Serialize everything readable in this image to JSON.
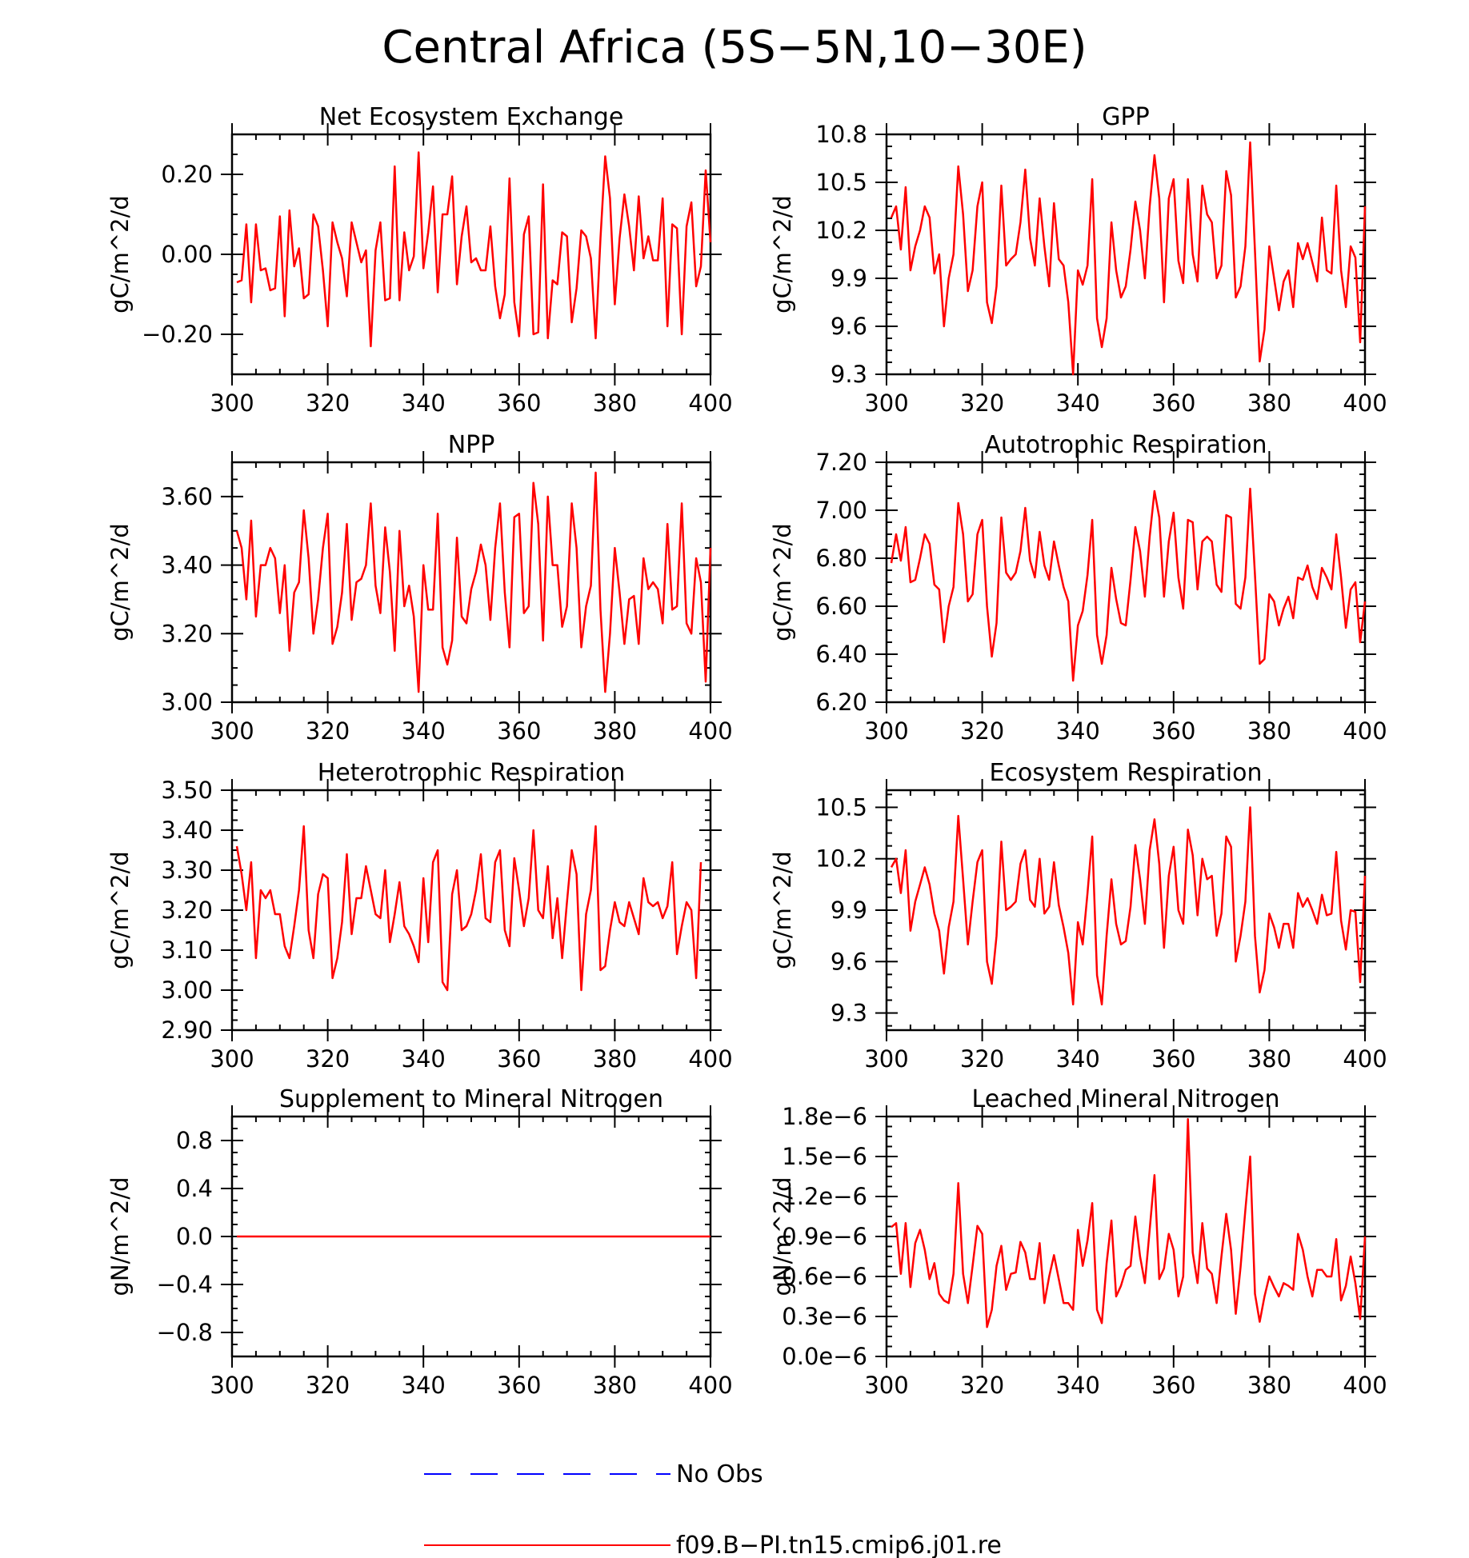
{
  "title": "Central Africa (5S−5N,10−30E)",
  "legend": {
    "entries": [
      {
        "label": "No Obs",
        "color": "#0000ff",
        "dash": true
      },
      {
        "label": "f09.B−PI.tn15.cmip6.j01.re",
        "color": "#ff0000",
        "dash": false
      }
    ]
  },
  "chart_data": [
    {
      "type": "line",
      "title": "Net Ecosystem Exchange",
      "ylabel": "gC/m^2/d",
      "xlim": [
        300,
        400
      ],
      "ylim": [
        -0.3,
        0.3
      ],
      "xticks": [
        300,
        320,
        340,
        360,
        380,
        400
      ],
      "xtick_labels": [
        "300",
        "320",
        "340",
        "360",
        "380",
        "400"
      ],
      "yticks": [
        -0.2,
        0.0,
        0.2
      ],
      "ytick_labels": [
        "−0.20",
        "0.00",
        "0.20"
      ],
      "series": [
        {
          "color": "#ff0000",
          "x_start": 301,
          "x_step": 1,
          "values": [
            -0.07,
            -0.065,
            0.075,
            -0.12,
            0.075,
            -0.04,
            -0.035,
            -0.09,
            -0.085,
            0.095,
            -0.155,
            0.11,
            -0.03,
            0.015,
            -0.11,
            -0.1,
            0.1,
            0.07,
            -0.04,
            -0.18,
            0.08,
            0.03,
            -0.01,
            -0.105,
            0.08,
            0.03,
            -0.02,
            0.01,
            -0.23,
            0.01,
            0.08,
            -0.115,
            -0.11,
            0.22,
            -0.115,
            0.055,
            -0.04,
            -0.005,
            0.255,
            -0.035,
            0.055,
            0.17,
            -0.095,
            0.1,
            0.1,
            0.195,
            -0.075,
            0.045,
            0.12,
            -0.02,
            -0.01,
            -0.04,
            -0.04,
            0.07,
            -0.08,
            -0.16,
            -0.1,
            0.19,
            -0.12,
            -0.205,
            0.05,
            0.095,
            -0.2,
            -0.195,
            0.175,
            -0.21,
            -0.065,
            -0.075,
            0.055,
            0.045,
            -0.17,
            -0.085,
            0.06,
            0.045,
            -0.01,
            -0.21,
            0.04,
            0.245,
            0.14,
            -0.125,
            0.04,
            0.15,
            0.07,
            -0.04,
            0.145,
            -0.01,
            0.045,
            -0.015,
            -0.015,
            0.14,
            -0.18,
            0.075,
            0.065,
            -0.2,
            0.07,
            0.13,
            -0.08,
            -0.03,
            0.21,
            0.03
          ]
        }
      ]
    },
    {
      "type": "line",
      "title": "GPP",
      "ylabel": "gC/m^2/d",
      "xlim": [
        300,
        400
      ],
      "ylim": [
        9.3,
        10.8
      ],
      "xticks": [
        300,
        320,
        340,
        360,
        380,
        400
      ],
      "xtick_labels": [
        "300",
        "320",
        "340",
        "360",
        "380",
        "400"
      ],
      "yticks": [
        9.3,
        9.6,
        9.9,
        10.2,
        10.5,
        10.8
      ],
      "ytick_labels": [
        "9.3",
        "9.6",
        "9.9",
        "10.2",
        "10.5",
        "10.8"
      ],
      "series": [
        {
          "color": "#ff0000",
          "x_start": 301,
          "x_step": 1,
          "values": [
            10.28,
            10.35,
            10.08,
            10.47,
            9.95,
            10.1,
            10.2,
            10.35,
            10.28,
            9.93,
            10.05,
            9.6,
            9.9,
            10.05,
            10.6,
            10.3,
            9.82,
            9.95,
            10.35,
            10.5,
            9.75,
            9.62,
            9.85,
            10.48,
            9.98,
            10.02,
            10.05,
            10.25,
            10.58,
            10.15,
            9.98,
            10.4,
            10.1,
            9.85,
            10.37,
            10.02,
            9.98,
            9.75,
            9.3,
            9.95,
            9.86,
            9.98,
            10.52,
            9.65,
            9.47,
            9.65,
            10.25,
            9.95,
            9.78,
            9.85,
            10.08,
            10.38,
            10.2,
            9.9,
            10.35,
            10.67,
            10.4,
            9.75,
            10.4,
            10.52,
            10.01,
            9.87,
            10.52,
            10.05,
            9.88,
            10.48,
            10.3,
            10.25,
            9.9,
            9.98,
            10.57,
            10.42,
            9.78,
            9.85,
            10.1,
            10.75,
            10.07,
            9.38,
            9.58,
            10.1,
            9.9,
            9.7,
            9.88,
            9.95,
            9.72,
            10.12,
            10.02,
            10.12,
            10.0,
            9.88,
            10.28,
            9.95,
            9.93,
            10.48,
            9.95,
            9.72,
            10.1,
            10.03,
            9.5,
            10.35
          ]
        }
      ]
    },
    {
      "type": "line",
      "title": "NPP",
      "ylabel": "gC/m^2/d",
      "xlim": [
        300,
        400
      ],
      "ylim": [
        3.0,
        3.7
      ],
      "xticks": [
        300,
        320,
        340,
        360,
        380,
        400
      ],
      "xtick_labels": [
        "300",
        "320",
        "340",
        "360",
        "380",
        "400"
      ],
      "yticks": [
        3.0,
        3.2,
        3.4,
        3.6
      ],
      "ytick_labels": [
        "3.00",
        "3.20",
        "3.40",
        "3.60"
      ],
      "series": [
        {
          "color": "#ff0000",
          "x_start": 301,
          "x_step": 1,
          "values": [
            3.5,
            3.45,
            3.3,
            3.53,
            3.25,
            3.4,
            3.4,
            3.45,
            3.42,
            3.26,
            3.4,
            3.15,
            3.32,
            3.35,
            3.56,
            3.42,
            3.2,
            3.3,
            3.45,
            3.55,
            3.17,
            3.22,
            3.32,
            3.52,
            3.24,
            3.35,
            3.36,
            3.4,
            3.58,
            3.34,
            3.26,
            3.51,
            3.38,
            3.15,
            3.5,
            3.28,
            3.34,
            3.25,
            3.03,
            3.4,
            3.27,
            3.27,
            3.55,
            3.16,
            3.11,
            3.18,
            3.48,
            3.25,
            3.23,
            3.33,
            3.38,
            3.46,
            3.4,
            3.24,
            3.45,
            3.58,
            3.32,
            3.16,
            3.54,
            3.55,
            3.26,
            3.28,
            3.64,
            3.52,
            3.18,
            3.6,
            3.4,
            3.4,
            3.22,
            3.28,
            3.58,
            3.45,
            3.16,
            3.28,
            3.34,
            3.67,
            3.27,
            3.03,
            3.2,
            3.45,
            3.32,
            3.17,
            3.3,
            3.31,
            3.17,
            3.42,
            3.33,
            3.35,
            3.33,
            3.23,
            3.52,
            3.27,
            3.28,
            3.58,
            3.23,
            3.2,
            3.42,
            3.35,
            3.06,
            3.45
          ]
        }
      ]
    },
    {
      "type": "line",
      "title": "Autotrophic Respiration",
      "ylabel": "gC/m^2/d",
      "xlim": [
        300,
        400
      ],
      "ylim": [
        6.2,
        7.2
      ],
      "xticks": [
        300,
        320,
        340,
        360,
        380,
        400
      ],
      "xtick_labels": [
        "300",
        "320",
        "340",
        "360",
        "380",
        "400"
      ],
      "yticks": [
        6.2,
        6.4,
        6.6,
        6.8,
        7.0,
        7.2
      ],
      "ytick_labels": [
        "6.20",
        "6.40",
        "6.60",
        "6.80",
        "7.00",
        "7.20"
      ],
      "series": [
        {
          "color": "#ff0000",
          "x_start": 301,
          "x_step": 1,
          "values": [
            6.78,
            6.9,
            6.79,
            6.93,
            6.7,
            6.71,
            6.8,
            6.9,
            6.86,
            6.69,
            6.67,
            6.45,
            6.6,
            6.68,
            7.03,
            6.9,
            6.62,
            6.65,
            6.9,
            6.96,
            6.6,
            6.39,
            6.53,
            6.97,
            6.74,
            6.71,
            6.74,
            6.83,
            7.01,
            6.79,
            6.72,
            6.91,
            6.77,
            6.71,
            6.87,
            6.77,
            6.68,
            6.62,
            6.29,
            6.52,
            6.58,
            6.73,
            6.96,
            6.48,
            6.36,
            6.48,
            6.76,
            6.63,
            6.53,
            6.52,
            6.71,
            6.93,
            6.83,
            6.64,
            6.89,
            7.08,
            6.97,
            6.64,
            6.87,
            6.99,
            6.72,
            6.59,
            6.96,
            6.95,
            6.67,
            6.87,
            6.89,
            6.87,
            6.69,
            6.66,
            6.98,
            6.97,
            6.61,
            6.59,
            6.72,
            7.09,
            6.73,
            6.36,
            6.38,
            6.65,
            6.62,
            6.52,
            6.59,
            6.64,
            6.55,
            6.72,
            6.71,
            6.77,
            6.68,
            6.63,
            6.76,
            6.72,
            6.67,
            6.9,
            6.72,
            6.51,
            6.67,
            6.7,
            6.45,
            6.62
          ]
        }
      ]
    },
    {
      "type": "line",
      "title": "Heterotrophic Respiration",
      "ylabel": "gC/m^2/d",
      "xlim": [
        300,
        400
      ],
      "ylim": [
        2.9,
        3.5
      ],
      "xticks": [
        300,
        320,
        340,
        360,
        380,
        400
      ],
      "xtick_labels": [
        "300",
        "320",
        "340",
        "360",
        "380",
        "400"
      ],
      "yticks": [
        2.9,
        3.0,
        3.1,
        3.2,
        3.3,
        3.4,
        3.5
      ],
      "ytick_labels": [
        "2.90",
        "3.00",
        "3.10",
        "3.20",
        "3.30",
        "3.40",
        "3.50"
      ],
      "series": [
        {
          "color": "#ff0000",
          "x_start": 301,
          "x_step": 1,
          "values": [
            3.36,
            3.29,
            3.2,
            3.32,
            3.08,
            3.25,
            3.23,
            3.25,
            3.19,
            3.19,
            3.11,
            3.08,
            3.16,
            3.25,
            3.41,
            3.15,
            3.08,
            3.24,
            3.29,
            3.28,
            3.03,
            3.08,
            3.17,
            3.34,
            3.14,
            3.23,
            3.23,
            3.31,
            3.25,
            3.19,
            3.18,
            3.3,
            3.12,
            3.19,
            3.27,
            3.16,
            3.14,
            3.11,
            3.07,
            3.28,
            3.12,
            3.32,
            3.35,
            3.02,
            3.0,
            3.24,
            3.3,
            3.15,
            3.16,
            3.19,
            3.25,
            3.34,
            3.18,
            3.17,
            3.32,
            3.35,
            3.15,
            3.11,
            3.33,
            3.25,
            3.16,
            3.23,
            3.4,
            3.2,
            3.18,
            3.31,
            3.13,
            3.23,
            3.08,
            3.22,
            3.35,
            3.29,
            3.0,
            3.19,
            3.25,
            3.41,
            3.05,
            3.06,
            3.15,
            3.22,
            3.17,
            3.16,
            3.22,
            3.18,
            3.14,
            3.28,
            3.22,
            3.21,
            3.22,
            3.18,
            3.21,
            3.32,
            3.09,
            3.16,
            3.22,
            3.2,
            3.03,
            3.32
          ]
        }
      ]
    },
    {
      "type": "line",
      "title": "Ecosystem Respiration",
      "ylabel": "gC/m^2/d",
      "xlim": [
        300,
        400
      ],
      "ylim": [
        9.2,
        10.6
      ],
      "xticks": [
        300,
        320,
        340,
        360,
        380,
        400
      ],
      "xtick_labels": [
        "300",
        "320",
        "340",
        "360",
        "380",
        "400"
      ],
      "yticks": [
        9.3,
        9.6,
        9.9,
        10.2,
        10.5
      ],
      "ytick_labels": [
        "9.3",
        "9.6",
        "9.9",
        "10.2",
        "10.5"
      ],
      "series": [
        {
          "color": "#ff0000",
          "x_start": 301,
          "x_step": 1,
          "values": [
            10.15,
            10.2,
            10.0,
            10.25,
            9.78,
            9.95,
            10.05,
            10.15,
            10.05,
            9.88,
            9.78,
            9.53,
            9.8,
            9.95,
            10.45,
            10.08,
            9.7,
            9.95,
            10.18,
            10.25,
            9.6,
            9.47,
            9.75,
            10.3,
            9.9,
            9.92,
            9.95,
            10.17,
            10.25,
            9.96,
            9.92,
            10.2,
            9.88,
            9.92,
            10.18,
            9.93,
            9.8,
            9.65,
            9.35,
            9.83,
            9.7,
            10.0,
            10.33,
            9.52,
            9.35,
            9.75,
            10.08,
            9.82,
            9.7,
            9.72,
            9.92,
            10.28,
            10.08,
            9.82,
            10.25,
            10.43,
            10.17,
            9.68,
            10.1,
            10.27,
            9.9,
            9.82,
            10.37,
            10.22,
            9.87,
            10.2,
            10.08,
            10.1,
            9.75,
            9.88,
            10.33,
            10.27,
            9.6,
            9.75,
            9.95,
            10.5,
            9.75,
            9.42,
            9.55,
            9.88,
            9.8,
            9.68,
            9.82,
            9.82,
            9.68,
            10.0,
            9.92,
            9.97,
            9.9,
            9.82,
            9.99,
            9.87,
            9.88,
            10.24,
            9.84,
            9.67,
            9.9,
            9.89,
            9.48,
            10.1
          ]
        }
      ]
    },
    {
      "type": "line",
      "title": "Supplement to Mineral Nitrogen",
      "ylabel": "gN/m^2/d",
      "xlim": [
        300,
        400
      ],
      "ylim": [
        -1.0,
        1.0
      ],
      "xticks": [
        300,
        320,
        340,
        360,
        380,
        400
      ],
      "xtick_labels": [
        "300",
        "320",
        "340",
        "360",
        "380",
        "400"
      ],
      "yticks": [
        -0.8,
        -0.4,
        0.0,
        0.4,
        0.8
      ],
      "ytick_labels": [
        "−0.8",
        "−0.4",
        "0.0",
        "0.4",
        "0.8"
      ],
      "series": [
        {
          "color": "#ff0000",
          "x_start": 301,
          "x_step": 99,
          "values": [
            0.0,
            0.0
          ]
        }
      ]
    },
    {
      "type": "line",
      "title": "Leached Mineral Nitrogen",
      "ylabel": "gN/m^2/d",
      "xlim": [
        300,
        400
      ],
      "ylim": [
        0.0,
        1.8
      ],
      "xticks": [
        300,
        320,
        340,
        360,
        380,
        400
      ],
      "xtick_labels": [
        "300",
        "320",
        "340",
        "360",
        "380",
        "400"
      ],
      "yticks": [
        0.0,
        0.3,
        0.6,
        0.9,
        1.2,
        1.5,
        1.8
      ],
      "ytick_labels": [
        "0.0e−6",
        "0.3e−6",
        "0.6e−6",
        "0.9e−6",
        "1.2e−6",
        "1.5e−6",
        "1.8e−6"
      ],
      "series": [
        {
          "color": "#ff0000",
          "x_start": 301,
          "x_step": 1,
          "values": [
            0.97,
            1.0,
            0.62,
            1.0,
            0.52,
            0.85,
            0.95,
            0.8,
            0.58,
            0.7,
            0.47,
            0.42,
            0.4,
            0.62,
            1.3,
            0.62,
            0.4,
            0.68,
            0.98,
            0.92,
            0.22,
            0.35,
            0.68,
            0.83,
            0.5,
            0.62,
            0.63,
            0.86,
            0.78,
            0.58,
            0.58,
            0.85,
            0.4,
            0.6,
            0.76,
            0.58,
            0.4,
            0.4,
            0.35,
            0.95,
            0.68,
            0.87,
            1.15,
            0.35,
            0.25,
            0.7,
            1.02,
            0.45,
            0.53,
            0.65,
            0.68,
            1.05,
            0.75,
            0.55,
            0.95,
            1.36,
            0.58,
            0.66,
            0.92,
            0.8,
            0.45,
            0.6,
            1.78,
            0.78,
            0.55,
            1.0,
            0.66,
            0.62,
            0.4,
            0.75,
            1.07,
            0.8,
            0.32,
            0.67,
            1.1,
            1.5,
            0.47,
            0.26,
            0.45,
            0.6,
            0.52,
            0.45,
            0.55,
            0.53,
            0.5,
            0.92,
            0.8,
            0.6,
            0.45,
            0.65,
            0.65,
            0.6,
            0.6,
            0.88,
            0.42,
            0.53,
            0.75,
            0.55,
            0.28,
            0.9
          ]
        }
      ]
    }
  ]
}
